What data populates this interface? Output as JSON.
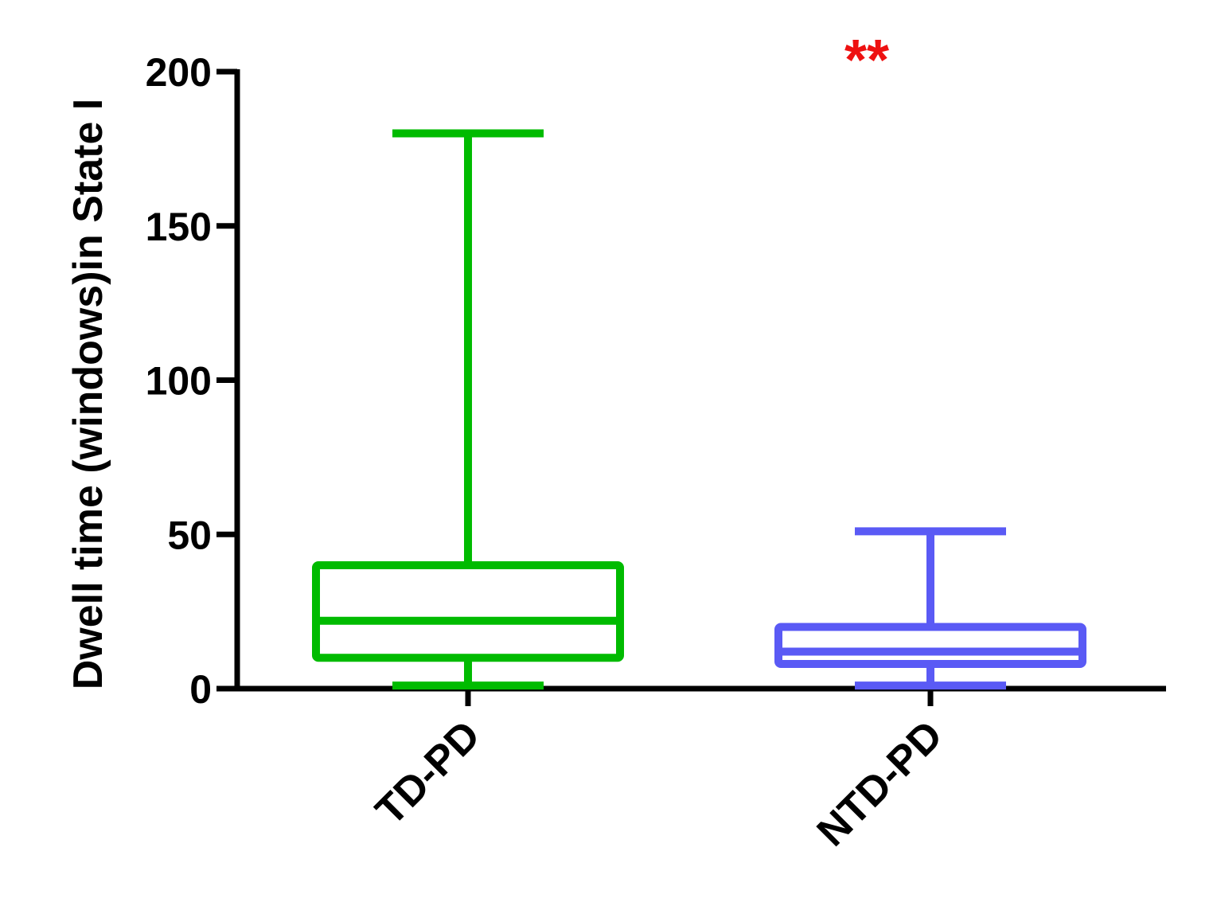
{
  "chart_data": {
    "type": "box",
    "ylabel": "Dwell time (windows)in State I",
    "ylim": [
      0,
      200
    ],
    "yticks": [
      0,
      50,
      100,
      150,
      200
    ],
    "categories": [
      "TD-PD",
      "NTD-PD"
    ],
    "boxes": [
      {
        "name": "TD-PD",
        "min": 1,
        "q1": 10,
        "median": 22,
        "q3": 40,
        "max": 180,
        "color": "#00bb00"
      },
      {
        "name": "NTD-PD",
        "min": 1,
        "q1": 8,
        "median": 12,
        "q3": 20,
        "max": 51,
        "color": "#5a5af5"
      }
    ],
    "annotation": {
      "text": "**",
      "category": "NTD-PD",
      "color": "#ee1111"
    },
    "axis_color": "#000000"
  }
}
